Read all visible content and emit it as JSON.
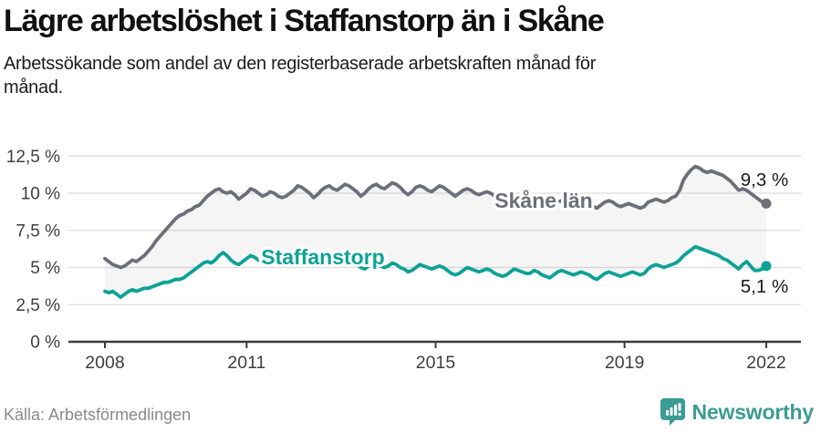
{
  "header": {
    "title": "Lägre arbetslöshet i Staffanstorp än i Skåne",
    "subtitle": "Arbetssökande som andel av den registerbaserade arbetskraften månad för månad."
  },
  "chart_data": {
    "type": "line",
    "x_unit": "month",
    "x_start": "2008-01",
    "x_end": "2022-01",
    "x_tick_years": [
      2008,
      2011,
      2015,
      2019,
      2022
    ],
    "x_tick_labels": [
      "2008",
      "2011",
      "2015",
      "2019",
      "2022"
    ],
    "y_ticks": [
      0,
      2.5,
      5,
      7.5,
      10,
      12.5
    ],
    "y_tick_labels": [
      "0 %",
      "2,5 %",
      "5 %",
      "7,5 %",
      "10 %",
      "12,5 %"
    ],
    "ylim": [
      0,
      13.3
    ],
    "grid": "horizontal",
    "band_between_series": true,
    "series": [
      {
        "name": "Skåne län",
        "color": "#6e6e79",
        "end_value": 9.3,
        "end_label": "9,3 %",
        "values": [
          5.6,
          5.4,
          5.2,
          5.1,
          5.0,
          5.1,
          5.3,
          5.5,
          5.4,
          5.6,
          5.8,
          6.1,
          6.4,
          6.8,
          7.1,
          7.4,
          7.7,
          8.0,
          8.3,
          8.5,
          8.6,
          8.8,
          8.9,
          9.1,
          9.2,
          9.5,
          9.8,
          10.0,
          10.2,
          10.3,
          10.1,
          10.0,
          10.1,
          9.9,
          9.6,
          9.8,
          10.0,
          10.3,
          10.2,
          10.0,
          9.8,
          9.9,
          10.1,
          10.0,
          9.8,
          9.7,
          9.8,
          10.0,
          10.2,
          10.5,
          10.4,
          10.2,
          10.0,
          9.7,
          9.9,
          10.2,
          10.4,
          10.5,
          10.3,
          10.2,
          10.4,
          10.6,
          10.5,
          10.3,
          10.1,
          9.8,
          10.0,
          10.3,
          10.5,
          10.6,
          10.4,
          10.3,
          10.5,
          10.7,
          10.6,
          10.4,
          10.1,
          9.9,
          10.1,
          10.4,
          10.5,
          10.4,
          10.2,
          10.1,
          10.3,
          10.5,
          10.4,
          10.2,
          10.0,
          9.8,
          10.0,
          10.2,
          10.3,
          10.2,
          10.0,
          9.9,
          10.0,
          10.1,
          10.0,
          9.8,
          9.6,
          9.4,
          9.6,
          9.8,
          9.9,
          9.8,
          9.6,
          9.5,
          9.5,
          9.6,
          9.5,
          9.3,
          9.1,
          9.0,
          9.2,
          9.4,
          9.5,
          9.4,
          9.3,
          9.2,
          9.3,
          9.4,
          9.3,
          9.2,
          9.1,
          9.0,
          9.2,
          9.4,
          9.5,
          9.4,
          9.2,
          9.1,
          9.2,
          9.3,
          9.2,
          9.1,
          9.0,
          9.1,
          9.4,
          9.5,
          9.6,
          9.5,
          9.4,
          9.5,
          9.7,
          9.8,
          10.2,
          10.9,
          11.3,
          11.6,
          11.8,
          11.7,
          11.5,
          11.4,
          11.5,
          11.4,
          11.3,
          11.2,
          11.0,
          10.8,
          10.5,
          10.2,
          10.3,
          10.2,
          10.0,
          9.8,
          9.6,
          9.4,
          9.3
        ]
      },
      {
        "name": "Staffanstorp",
        "color": "#0da296",
        "end_value": 5.1,
        "end_label": "5,1 %",
        "values": [
          3.4,
          3.3,
          3.4,
          3.2,
          3.0,
          3.2,
          3.4,
          3.5,
          3.4,
          3.5,
          3.6,
          3.6,
          3.7,
          3.8,
          3.9,
          4.0,
          4.0,
          4.1,
          4.2,
          4.2,
          4.3,
          4.5,
          4.7,
          4.9,
          5.1,
          5.3,
          5.4,
          5.3,
          5.5,
          5.8,
          6.0,
          5.8,
          5.5,
          5.3,
          5.2,
          5.4,
          5.6,
          5.8,
          5.7,
          5.5,
          5.4,
          5.6,
          5.8,
          5.7,
          5.5,
          5.3,
          5.2,
          5.4,
          5.5,
          5.7,
          5.9,
          6.1,
          5.9,
          5.6,
          5.4,
          5.7,
          5.9,
          5.8,
          5.7,
          5.6,
          5.5,
          5.7,
          5.6,
          5.4,
          5.2,
          5.0,
          4.9,
          5.1,
          5.3,
          5.2,
          5.1,
          5.0,
          5.1,
          5.3,
          5.2,
          5.0,
          4.9,
          4.7,
          4.8,
          5.0,
          5.2,
          5.1,
          5.0,
          4.9,
          5.0,
          5.1,
          5.0,
          4.8,
          4.6,
          4.5,
          4.6,
          4.8,
          5.0,
          4.9,
          4.8,
          4.7,
          4.8,
          4.9,
          4.8,
          4.6,
          4.5,
          4.4,
          4.5,
          4.7,
          4.9,
          4.8,
          4.7,
          4.6,
          4.6,
          4.8,
          4.7,
          4.5,
          4.4,
          4.3,
          4.5,
          4.7,
          4.8,
          4.7,
          4.6,
          4.5,
          4.6,
          4.7,
          4.6,
          4.5,
          4.3,
          4.2,
          4.4,
          4.6,
          4.7,
          4.6,
          4.5,
          4.4,
          4.5,
          4.6,
          4.7,
          4.6,
          4.5,
          4.6,
          4.9,
          5.1,
          5.2,
          5.1,
          5.0,
          5.1,
          5.2,
          5.3,
          5.5,
          5.8,
          6.0,
          6.2,
          6.4,
          6.3,
          6.2,
          6.1,
          6.0,
          5.9,
          5.8,
          5.6,
          5.5,
          5.3,
          5.1,
          4.9,
          5.2,
          5.4,
          5.1,
          4.8,
          4.8,
          4.9,
          5.1
        ]
      }
    ],
    "colors": {
      "gridline": "#dcdcdc",
      "axis": "#3c3c3c",
      "tick_text": "#3f3f3f",
      "value_label_text": "#1a1a1a",
      "band_fill": "rgba(125,125,135,0.08)"
    }
  },
  "footer": {
    "source": "Källa: Arbetsförmedlingen",
    "brand": "Newsworthy",
    "brand_color": "#3b9c93"
  }
}
